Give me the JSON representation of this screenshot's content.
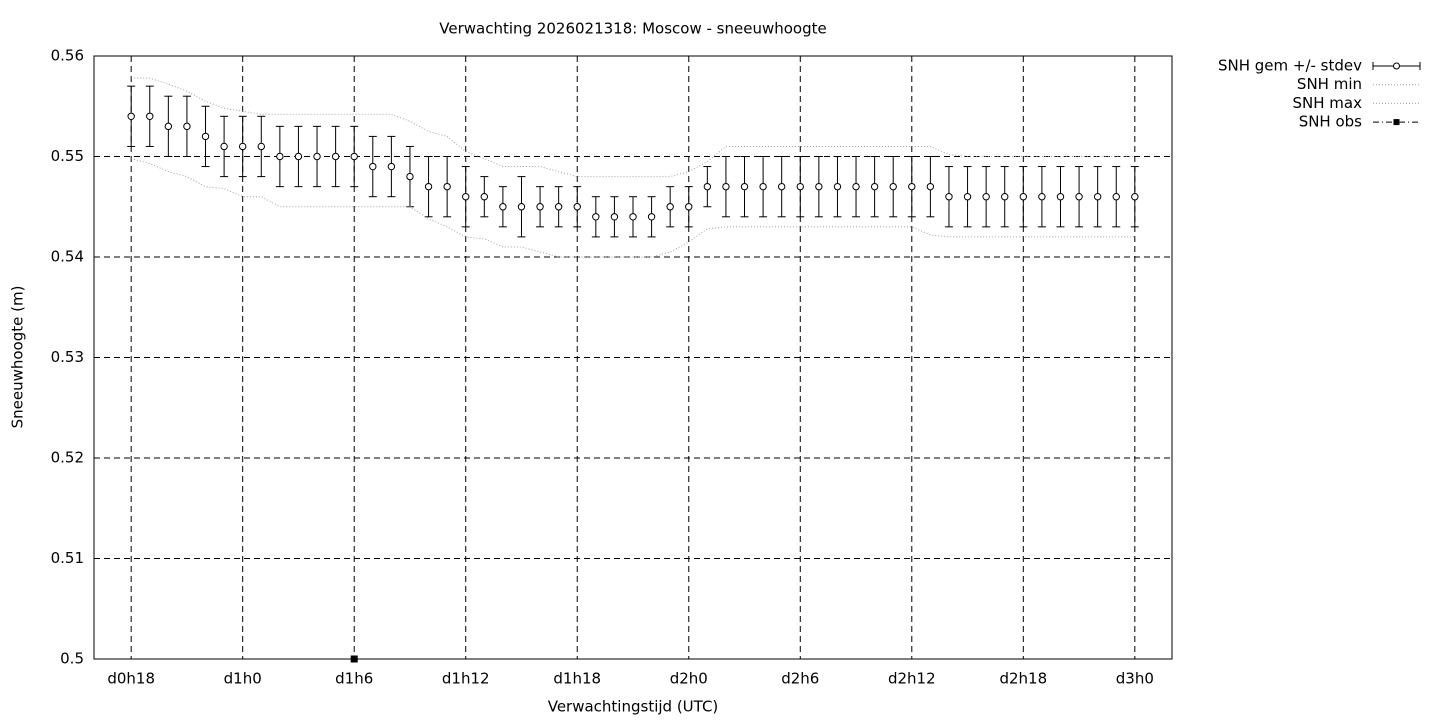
{
  "chart_data": {
    "type": "errorbar",
    "title": "Verwachting 2026021318: Moscow - sneeuwhoogte",
    "xlabel": "Verwachtingstijd (UTC)",
    "ylabel": "Sneeuwhoogte (m)",
    "xlim": [
      16,
      74
    ],
    "xticks": [
      {
        "value": 18,
        "label": "d0h18"
      },
      {
        "value": 24,
        "label": "d1h0"
      },
      {
        "value": 30,
        "label": "d1h6"
      },
      {
        "value": 36,
        "label": "d1h12"
      },
      {
        "value": 42,
        "label": "d1h18"
      },
      {
        "value": 48,
        "label": "d2h0"
      },
      {
        "value": 54,
        "label": "d2h6"
      },
      {
        "value": 60,
        "label": "d2h12"
      },
      {
        "value": 66,
        "label": "d2h18"
      },
      {
        "value": 72,
        "label": "d3h0"
      }
    ],
    "ylim": [
      0.5,
      0.56
    ],
    "yticks": [
      0.5,
      0.51,
      0.52,
      0.53,
      0.54,
      0.55,
      0.56
    ],
    "grid": true,
    "legend": "outside-top-right",
    "x": [
      18,
      19,
      20,
      21,
      22,
      23,
      24,
      25,
      26,
      27,
      28,
      29,
      30,
      31,
      32,
      33,
      34,
      35,
      36,
      37,
      38,
      39,
      40,
      41,
      42,
      43,
      44,
      45,
      46,
      47,
      48,
      49,
      50,
      51,
      52,
      53,
      54,
      55,
      56,
      57,
      58,
      59,
      60,
      61,
      62,
      63,
      64,
      65,
      66,
      67,
      68,
      69,
      70,
      71,
      72
    ],
    "series": [
      {
        "name": "SNH gem +/- stdev",
        "color": "#000000",
        "style": "errorbars",
        "values": [
          0.554,
          0.554,
          0.553,
          0.553,
          0.552,
          0.551,
          0.551,
          0.551,
          0.55,
          0.55,
          0.55,
          0.55,
          0.55,
          0.549,
          0.549,
          0.548,
          0.547,
          0.547,
          0.546,
          0.546,
          0.545,
          0.545,
          0.545,
          0.545,
          0.545,
          0.544,
          0.544,
          0.544,
          0.544,
          0.545,
          0.545,
          0.547,
          0.547,
          0.547,
          0.547,
          0.547,
          0.547,
          0.547,
          0.547,
          0.547,
          0.547,
          0.547,
          0.547,
          0.547,
          0.546,
          0.546,
          0.546,
          0.546,
          0.546,
          0.546,
          0.546,
          0.546,
          0.546,
          0.546,
          0.546
        ],
        "errors": [
          0.003,
          0.003,
          0.003,
          0.003,
          0.003,
          0.003,
          0.003,
          0.003,
          0.003,
          0.003,
          0.003,
          0.003,
          0.003,
          0.003,
          0.003,
          0.003,
          0.003,
          0.003,
          0.003,
          0.002,
          0.002,
          0.003,
          0.002,
          0.002,
          0.002,
          0.002,
          0.002,
          0.002,
          0.002,
          0.002,
          0.002,
          0.002,
          0.003,
          0.003,
          0.003,
          0.003,
          0.003,
          0.003,
          0.003,
          0.003,
          0.003,
          0.003,
          0.003,
          0.003,
          0.003,
          0.003,
          0.003,
          0.003,
          0.003,
          0.003,
          0.003,
          0.003,
          0.003,
          0.003,
          0.003
        ]
      },
      {
        "name": "SNH min",
        "color": "#a0a0a0",
        "style": "dotted",
        "values": [
          0.5498,
          0.5493,
          0.5485,
          0.548,
          0.547,
          0.5468,
          0.546,
          0.546,
          0.545,
          0.545,
          0.545,
          0.545,
          0.545,
          0.545,
          0.545,
          0.545,
          0.5438,
          0.543,
          0.542,
          0.5418,
          0.541,
          0.541,
          0.5405,
          0.54,
          0.54,
          0.54,
          0.54,
          0.54,
          0.54,
          0.5405,
          0.5415,
          0.5428,
          0.543,
          0.543,
          0.543,
          0.543,
          0.543,
          0.543,
          0.543,
          0.543,
          0.543,
          0.543,
          0.543,
          0.5422,
          0.542,
          0.542,
          0.542,
          0.542,
          0.542,
          0.542,
          0.542,
          0.542,
          0.542,
          0.542,
          0.542
        ]
      },
      {
        "name": "SNH max",
        "color": "#a0a0a0",
        "style": "dotted",
        "values": [
          0.5578,
          0.5578,
          0.5572,
          0.5565,
          0.5555,
          0.5548,
          0.5545,
          0.5542,
          0.5542,
          0.5542,
          0.5542,
          0.5542,
          0.5542,
          0.5542,
          0.5542,
          0.5535,
          0.5525,
          0.552,
          0.5505,
          0.5498,
          0.549,
          0.549,
          0.549,
          0.5485,
          0.548,
          0.548,
          0.548,
          0.548,
          0.548,
          0.548,
          0.5485,
          0.5495,
          0.551,
          0.551,
          0.551,
          0.551,
          0.551,
          0.551,
          0.551,
          0.551,
          0.551,
          0.551,
          0.551,
          0.551,
          0.5502,
          0.55,
          0.55,
          0.55,
          0.55,
          0.55,
          0.55,
          0.55,
          0.55,
          0.55,
          0.55
        ]
      },
      {
        "name": "SNH obs",
        "color": "#000000",
        "style": "points",
        "x": [
          30
        ],
        "values": [
          0.5
        ]
      }
    ]
  }
}
